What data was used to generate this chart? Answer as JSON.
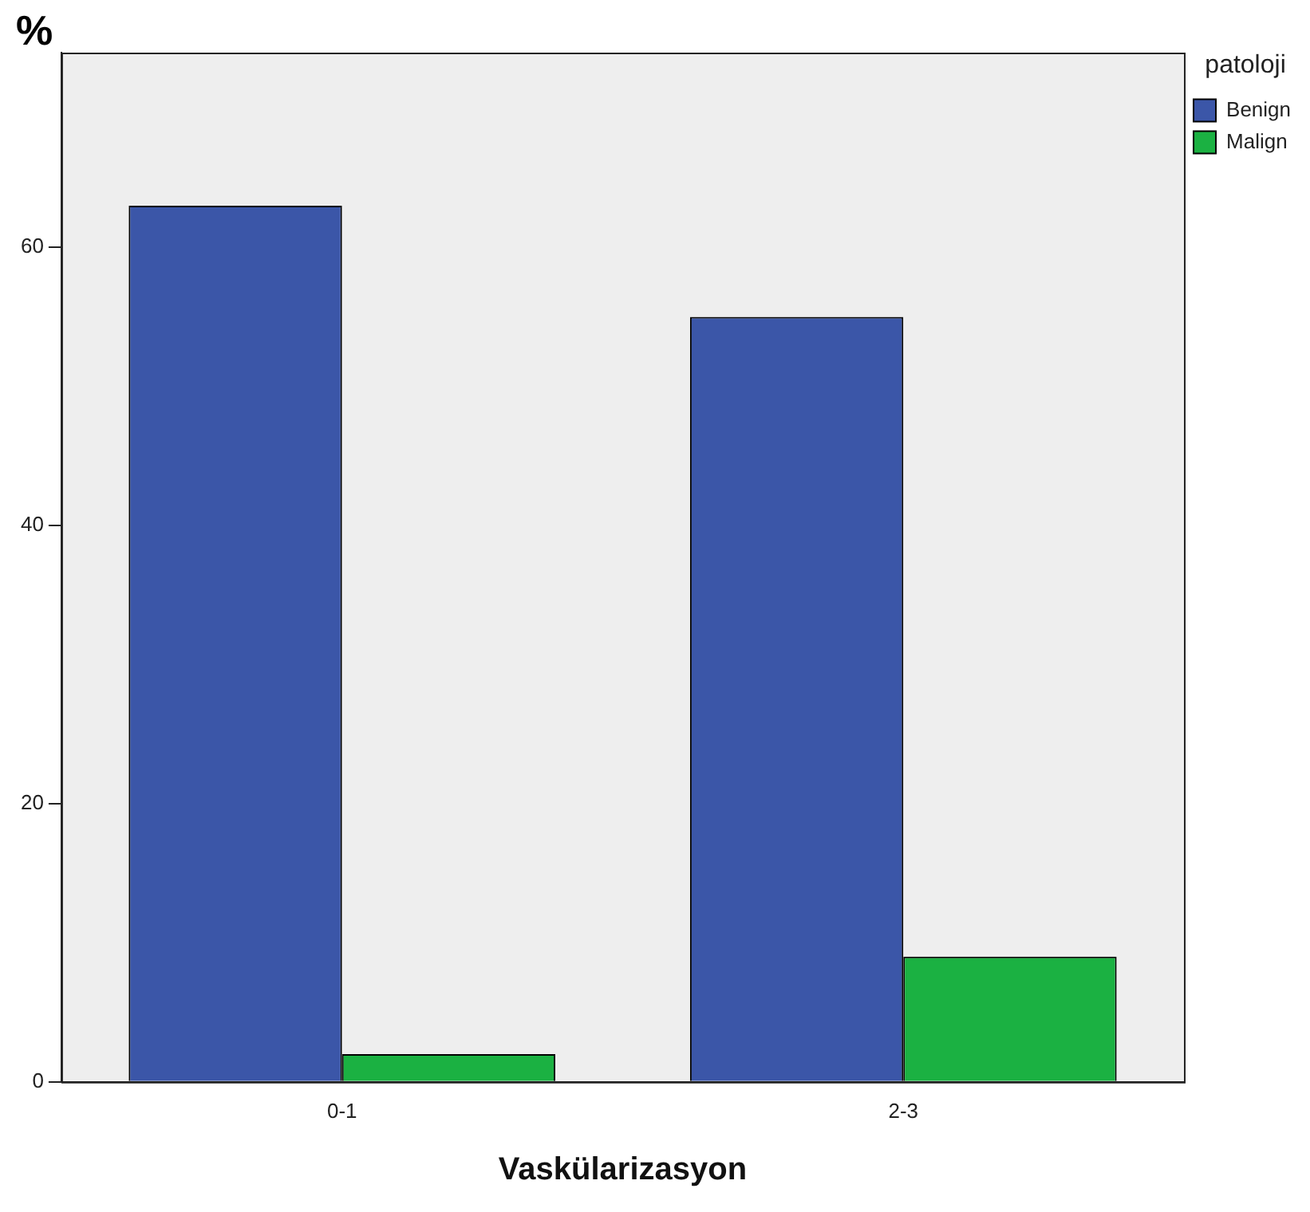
{
  "chart_data": {
    "type": "bar",
    "xlabel": "Vaskülarizasyon",
    "ylabel": "%",
    "legend_title": "patoloji",
    "categories": [
      "0-1",
      "2-3"
    ],
    "series": [
      {
        "name": "Benign",
        "color": "#3b56a8",
        "values": [
          63,
          55
        ]
      },
      {
        "name": "Malign",
        "color": "#1bb142",
        "values": [
          2,
          9
        ]
      }
    ],
    "ylim": [
      0,
      74
    ],
    "yticks": [
      0,
      20,
      40,
      60
    ],
    "grid": false,
    "legend": "right"
  }
}
